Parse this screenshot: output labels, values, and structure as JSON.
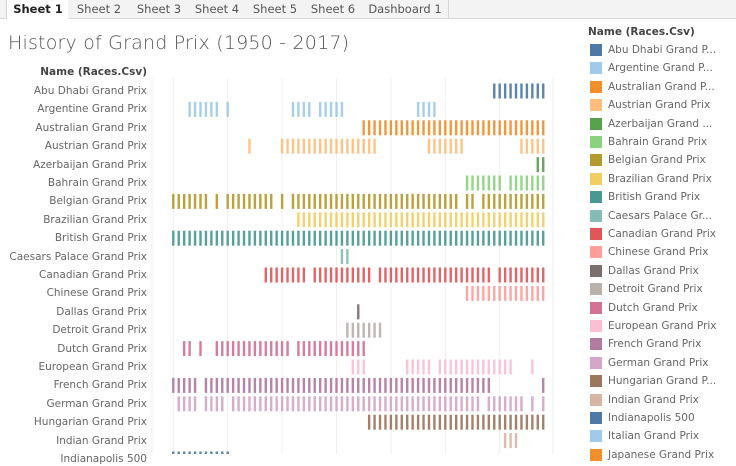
{
  "tabs": [
    "Sheet 1",
    "Sheet 2",
    "Sheet 3",
    "Sheet 4",
    "Sheet 5",
    "Sheet 6",
    "Dashboard 1"
  ],
  "active_tab": "Sheet 1",
  "title": "History of Grand Prix  (1950 - 2017)",
  "row_header": "Name (Races.Csv)",
  "legend": {
    "title": "Name (Races.Csv)",
    "items": [
      {
        "label": "Abu Dhabi Grand P...",
        "color": "#4e79a7"
      },
      {
        "label": "Argentine Grand P...",
        "color": "#a0cbe8"
      },
      {
        "label": "Australian Grand P...",
        "color": "#f28e2b"
      },
      {
        "label": "Austrian Grand Prix",
        "color": "#ffbe7d"
      },
      {
        "label": "Azerbaijan Grand ...",
        "color": "#59a14f"
      },
      {
        "label": "Bahrain Grand Prix",
        "color": "#8cd17d"
      },
      {
        "label": "Belgian Grand Prix",
        "color": "#b6992d"
      },
      {
        "label": "Brazilian Grand Prix",
        "color": "#f1ce63"
      },
      {
        "label": "British Grand Prix",
        "color": "#499894"
      },
      {
        "label": "Caesars Palace Gr...",
        "color": "#86bcb6"
      },
      {
        "label": "Canadian Grand Prix",
        "color": "#e15759"
      },
      {
        "label": "Chinese Grand Prix",
        "color": "#ff9d9a"
      },
      {
        "label": "Dallas Grand Prix",
        "color": "#79706e"
      },
      {
        "label": "Detroit Grand Prix",
        "color": "#bab0ac"
      },
      {
        "label": "Dutch Grand Prix",
        "color": "#d37295"
      },
      {
        "label": "European Grand Prix",
        "color": "#fabfd2"
      },
      {
        "label": "French Grand Prix",
        "color": "#b07aa1"
      },
      {
        "label": "German Grand Prix",
        "color": "#d4a6c8"
      },
      {
        "label": "Hungarian Grand P...",
        "color": "#9d7660"
      },
      {
        "label": "Indian Grand Prix",
        "color": "#d7b5a6"
      },
      {
        "label": "Indianapolis 500",
        "color": "#4e79a7"
      },
      {
        "label": "Italian Grand Prix",
        "color": "#a0cbe8"
      },
      {
        "label": "Japanese Grand Prix",
        "color": "#f28e2b"
      }
    ]
  },
  "chart_data": {
    "type": "strip",
    "x_range": [
      1950,
      2018
    ],
    "grid": "vertical",
    "rows": [
      {
        "name": "Abu Dhabi Grand Prix",
        "color": "#4e79a7",
        "year_ranges": [
          [
            2009,
            2018
          ]
        ]
      },
      {
        "name": "Argentine Grand Prix",
        "color": "#a0cbe8",
        "year_ranges": [
          [
            1953,
            1958
          ],
          [
            1960,
            1960
          ],
          [
            1972,
            1975
          ],
          [
            1977,
            1981
          ],
          [
            1995,
            1998
          ]
        ]
      },
      {
        "name": "Australian Grand Prix",
        "color": "#f28e2b",
        "year_ranges": [
          [
            1985,
            2018
          ]
        ]
      },
      {
        "name": "Austrian Grand Prix",
        "color": "#ffbe7d",
        "year_ranges": [
          [
            1964,
            1964
          ],
          [
            1970,
            1987
          ],
          [
            1997,
            2003
          ],
          [
            2014,
            2018
          ]
        ]
      },
      {
        "name": "Azerbaijan Grand Prix",
        "color": "#59a14f",
        "year_ranges": [
          [
            2017,
            2018
          ]
        ]
      },
      {
        "name": "Bahrain Grand Prix",
        "color": "#8cd17d",
        "year_ranges": [
          [
            2004,
            2010
          ],
          [
            2012,
            2018
          ]
        ]
      },
      {
        "name": "Belgian Grand Prix",
        "color": "#b6992d",
        "year_ranges": [
          [
            1950,
            1956
          ],
          [
            1958,
            1958
          ],
          [
            1960,
            1968
          ],
          [
            1970,
            1970
          ],
          [
            1972,
            2002
          ],
          [
            2004,
            2005
          ],
          [
            2007,
            2018
          ]
        ]
      },
      {
        "name": "Brazilian Grand Prix",
        "color": "#f1ce63",
        "year_ranges": [
          [
            1973,
            2018
          ]
        ]
      },
      {
        "name": "British Grand Prix",
        "color": "#499894",
        "year_ranges": [
          [
            1950,
            2018
          ]
        ]
      },
      {
        "name": "Caesars Palace Grand Prix",
        "color": "#86bcb6",
        "year_ranges": [
          [
            1981,
            1982
          ]
        ]
      },
      {
        "name": "Canadian Grand Prix",
        "color": "#e15759",
        "year_ranges": [
          [
            1967,
            1974
          ],
          [
            1976,
            1986
          ],
          [
            1988,
            2008
          ],
          [
            2010,
            2018
          ]
        ]
      },
      {
        "name": "Chinese Grand Prix",
        "color": "#ff9d9a",
        "year_ranges": [
          [
            2004,
            2018
          ]
        ]
      },
      {
        "name": "Dallas Grand Prix",
        "color": "#79706e",
        "year_ranges": [
          [
            1984,
            1984
          ]
        ]
      },
      {
        "name": "Detroit Grand Prix",
        "color": "#bab0ac",
        "year_ranges": [
          [
            1982,
            1988
          ]
        ]
      },
      {
        "name": "Dutch Grand Prix",
        "color": "#d37295",
        "year_ranges": [
          [
            1952,
            1953
          ],
          [
            1955,
            1955
          ],
          [
            1958,
            1971
          ],
          [
            1973,
            1985
          ]
        ]
      },
      {
        "name": "European Grand Prix",
        "color": "#fabfd2",
        "year_ranges": [
          [
            1983,
            1985
          ],
          [
            1993,
            1997
          ],
          [
            1999,
            2012
          ],
          [
            2016,
            2016
          ]
        ]
      },
      {
        "name": "French Grand Prix",
        "color": "#b07aa1",
        "year_ranges": [
          [
            1950,
            1954
          ],
          [
            1956,
            2008
          ],
          [
            2018,
            2018
          ]
        ]
      },
      {
        "name": "German Grand Prix",
        "color": "#d4a6c8",
        "year_ranges": [
          [
            1951,
            1954
          ],
          [
            1956,
            1959
          ],
          [
            1961,
            2006
          ],
          [
            2008,
            2014
          ],
          [
            2016,
            2016
          ],
          [
            2018,
            2018
          ]
        ]
      },
      {
        "name": "Hungarian Grand Prix",
        "color": "#9d7660",
        "year_ranges": [
          [
            1986,
            2018
          ]
        ]
      },
      {
        "name": "Indian Grand Prix",
        "color": "#d7b5a6",
        "year_ranges": [
          [
            2011,
            2013
          ]
        ]
      },
      {
        "name": "Indianapolis 500",
        "color": "#4e79a7",
        "year_ranges": [
          [
            1950,
            1960
          ]
        ]
      }
    ]
  }
}
